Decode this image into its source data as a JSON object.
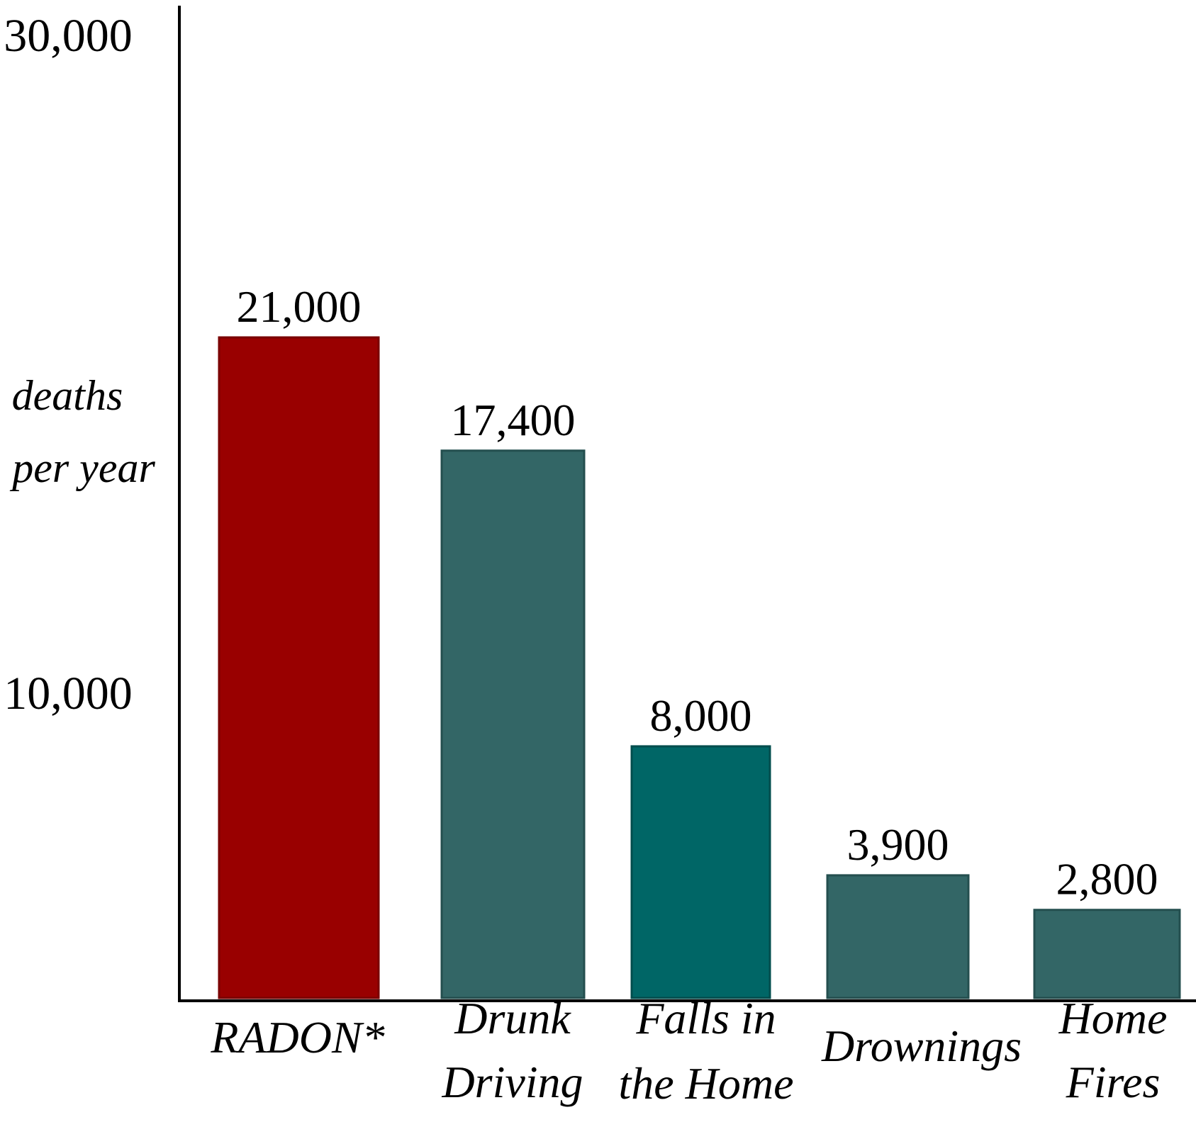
{
  "chart_data": {
    "type": "bar",
    "title": "",
    "xlabel": "",
    "ylabel_lines": [
      "deaths",
      "per year"
    ],
    "y_ticks": [
      {
        "value": 30000,
        "label": "30,000"
      },
      {
        "value": 10000,
        "label": "10,000"
      }
    ],
    "categories": [
      {
        "label_lines": [
          "RADON*"
        ],
        "value": 21000,
        "value_label": "21,000",
        "color": "#990000",
        "stroke": "#7a0000"
      },
      {
        "label_lines": [
          "Drunk",
          "Driving"
        ],
        "value": 17400,
        "value_label": "17,400",
        "color": "#336666",
        "stroke": "#244f4f"
      },
      {
        "label_lines": [
          "Falls in",
          "the Home"
        ],
        "value": 8000,
        "value_label": "8,000",
        "color": "#006666",
        "stroke": "#004d4d"
      },
      {
        "label_lines": [
          "Drownings"
        ],
        "value": 3900,
        "value_label": "3,900",
        "color": "#336666",
        "stroke": "#244f4f"
      },
      {
        "label_lines": [
          "Home",
          "Fires"
        ],
        "value": 2800,
        "value_label": "2,800",
        "color": "#336666",
        "stroke": "#244f4f"
      }
    ],
    "ylim": [
      0,
      30000
    ],
    "grid": false,
    "legend": "none"
  }
}
